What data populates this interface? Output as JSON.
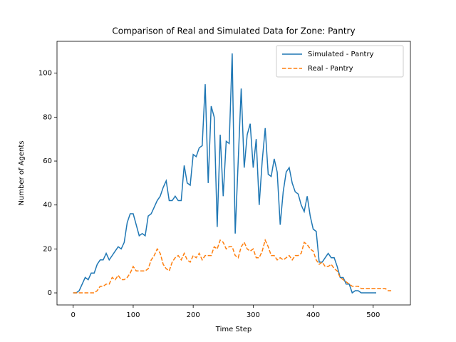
{
  "chart_data": {
    "type": "line",
    "title": "Comparison of Real and Simulated Data for Zone: Pantry",
    "x_label": "Time Step",
    "y_label": "Number of Agents",
    "xlim": [
      -27,
      562
    ],
    "ylim": [
      -5.5,
      114.5
    ],
    "xticks": [
      0,
      100,
      200,
      300,
      400,
      500
    ],
    "yticks": [
      0,
      20,
      40,
      60,
      80,
      100
    ],
    "legend": "upper right",
    "series": [
      {
        "name": "Simulated - Pantry",
        "color": "#1f77b4",
        "dash": "solid",
        "x": [
          0,
          5,
          10,
          15,
          20,
          25,
          30,
          35,
          40,
          45,
          50,
          55,
          60,
          65,
          70,
          75,
          80,
          85,
          90,
          95,
          100,
          105,
          110,
          115,
          120,
          125,
          130,
          135,
          140,
          145,
          150,
          155,
          160,
          165,
          170,
          175,
          180,
          185,
          190,
          195,
          200,
          205,
          210,
          215,
          220,
          225,
          230,
          235,
          240,
          245,
          250,
          255,
          260,
          265,
          270,
          275,
          280,
          285,
          290,
          295,
          300,
          305,
          310,
          315,
          320,
          325,
          330,
          335,
          340,
          345,
          350,
          355,
          360,
          365,
          370,
          375,
          380,
          385,
          390,
          395,
          400,
          405,
          410,
          415,
          420,
          425,
          430,
          435,
          440,
          445,
          450,
          455,
          460,
          465,
          470,
          475,
          480,
          485,
          490,
          495,
          500,
          505
        ],
        "values": [
          0,
          0,
          1,
          4,
          7,
          6,
          9,
          9,
          13,
          15,
          15,
          18,
          15,
          17,
          19,
          21,
          20,
          23,
          32,
          36,
          36,
          31,
          26,
          27,
          26,
          35,
          36,
          39,
          42,
          44,
          48,
          51,
          42,
          42,
          44,
          42,
          42,
          58,
          50,
          49,
          63,
          62,
          66,
          67,
          95,
          50,
          85,
          80,
          30,
          72,
          44,
          69,
          68,
          109,
          27,
          60,
          93,
          57,
          72,
          77,
          57,
          70,
          40,
          60,
          75,
          54,
          53,
          61,
          55,
          31,
          46,
          55,
          57,
          50,
          46,
          45,
          40,
          37,
          44,
          35,
          29,
          28,
          14,
          14,
          16,
          18,
          16,
          16,
          12,
          7,
          7,
          4,
          4,
          0,
          1,
          1,
          0,
          0,
          0,
          0,
          0,
          0
        ]
      },
      {
        "name": "Real - Pantry",
        "color": "#ff7f0e",
        "dash": "dashed",
        "x": [
          0,
          5,
          10,
          15,
          20,
          25,
          30,
          35,
          40,
          45,
          50,
          55,
          60,
          65,
          70,
          75,
          80,
          85,
          90,
          95,
          100,
          105,
          110,
          115,
          120,
          125,
          130,
          135,
          140,
          145,
          150,
          155,
          160,
          165,
          170,
          175,
          180,
          185,
          190,
          195,
          200,
          205,
          210,
          215,
          220,
          225,
          230,
          235,
          240,
          245,
          250,
          255,
          260,
          265,
          270,
          275,
          280,
          285,
          290,
          295,
          300,
          305,
          310,
          315,
          320,
          325,
          330,
          335,
          340,
          345,
          350,
          355,
          360,
          365,
          370,
          375,
          380,
          385,
          390,
          395,
          400,
          405,
          410,
          415,
          420,
          425,
          430,
          435,
          440,
          445,
          450,
          455,
          460,
          465,
          470,
          475,
          480,
          485,
          490,
          495,
          500,
          505,
          510,
          515,
          520,
          525,
          530
        ],
        "values": [
          0,
          0,
          0,
          0,
          0,
          0,
          0,
          0,
          1,
          3,
          3,
          4,
          4,
          7,
          6,
          8,
          6,
          6,
          7,
          9,
          12,
          10,
          10,
          10,
          10,
          11,
          15,
          17,
          20,
          18,
          13,
          11,
          10,
          14,
          16,
          17,
          15,
          18,
          15,
          14,
          17,
          16,
          18,
          15,
          17,
          17,
          17,
          21,
          20,
          24,
          23,
          20,
          21,
          21,
          17,
          16,
          21,
          23,
          20,
          19,
          20,
          16,
          16,
          19,
          24,
          21,
          17,
          17,
          15,
          16,
          15,
          16,
          17,
          15,
          17,
          17,
          18,
          23,
          22,
          20,
          19,
          15,
          13,
          14,
          12,
          12,
          13,
          11,
          10,
          7,
          6,
          5,
          4,
          3,
          3,
          3,
          2,
          2,
          2,
          2,
          2,
          2,
          2,
          2,
          2,
          1,
          1
        ]
      }
    ]
  }
}
